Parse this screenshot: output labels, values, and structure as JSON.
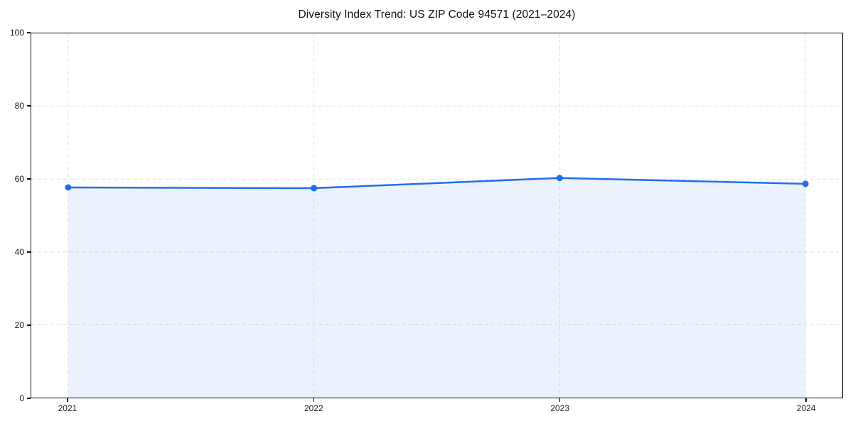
{
  "chart_data": {
    "type": "area",
    "title": "Diversity Index Trend: US ZIP Code 94571 (2021–2024)",
    "xlabel": "",
    "ylabel": "",
    "x": [
      2021,
      2022,
      2023,
      2024
    ],
    "values": [
      57.7,
      57.5,
      60.3,
      58.7
    ],
    "xticks": [
      2021,
      2022,
      2023,
      2024
    ],
    "yticks": [
      0,
      20,
      40,
      60,
      80,
      100
    ],
    "ylim": [
      0,
      100
    ],
    "x_margin_frac": 0.05,
    "grid": true,
    "grid_style": "dashed",
    "legend_position": "none",
    "colors": {
      "line": "#1f6feb",
      "marker": "#1f6feb",
      "fill": "rgba(31,111,235,0.09)",
      "grid": "#e0e0e0",
      "spine": "#111111",
      "background": "#ffffff",
      "title_text": "#111111",
      "tick_text": "#1a1a1a"
    },
    "line_width": 2.5,
    "marker_radius": 4.5
  }
}
